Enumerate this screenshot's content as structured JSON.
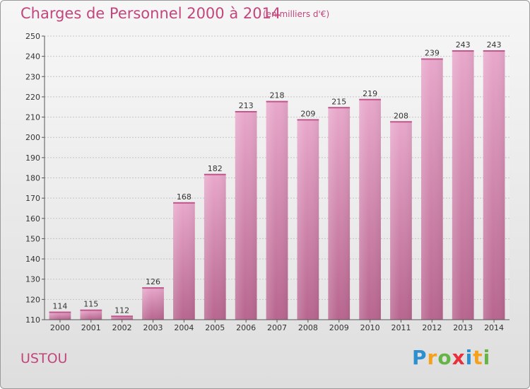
{
  "title": "Charges de Personnel 2000 à 2014",
  "subtitle": "(en milliers d'€)",
  "commune": "USTOU",
  "logo": {
    "letters": [
      {
        "ch": "P",
        "color": "#2b8fd0"
      },
      {
        "ch": "r",
        "color": "#f5a11c"
      },
      {
        "ch": "o",
        "color": "#67b446"
      },
      {
        "ch": "x",
        "color": "#e8303a"
      },
      {
        "ch": "i",
        "color": "#2b8fd0"
      },
      {
        "ch": "t",
        "color": "#f5a11c"
      },
      {
        "ch": "i",
        "color": "#67b446"
      }
    ]
  },
  "chart_data": {
    "type": "bar",
    "categories": [
      "2000",
      "2001",
      "2002",
      "2003",
      "2004",
      "2005",
      "2006",
      "2007",
      "2008",
      "2009",
      "2010",
      "2011",
      "2012",
      "2013",
      "2014"
    ],
    "values": [
      114,
      115,
      112,
      126,
      168,
      182,
      213,
      218,
      209,
      215,
      219,
      208,
      239,
      243,
      243
    ],
    "title": "Charges de Personnel 2000 à 2014",
    "subtitle": "(en milliers d'€)",
    "xlabel": "",
    "ylabel": "",
    "ylim": [
      110,
      250
    ],
    "yticks": [
      110,
      120,
      130,
      140,
      150,
      160,
      170,
      180,
      190,
      200,
      210,
      220,
      230,
      240,
      250
    ],
    "grid": true,
    "data_labels": true,
    "bar_color": "#d16b9e"
  }
}
